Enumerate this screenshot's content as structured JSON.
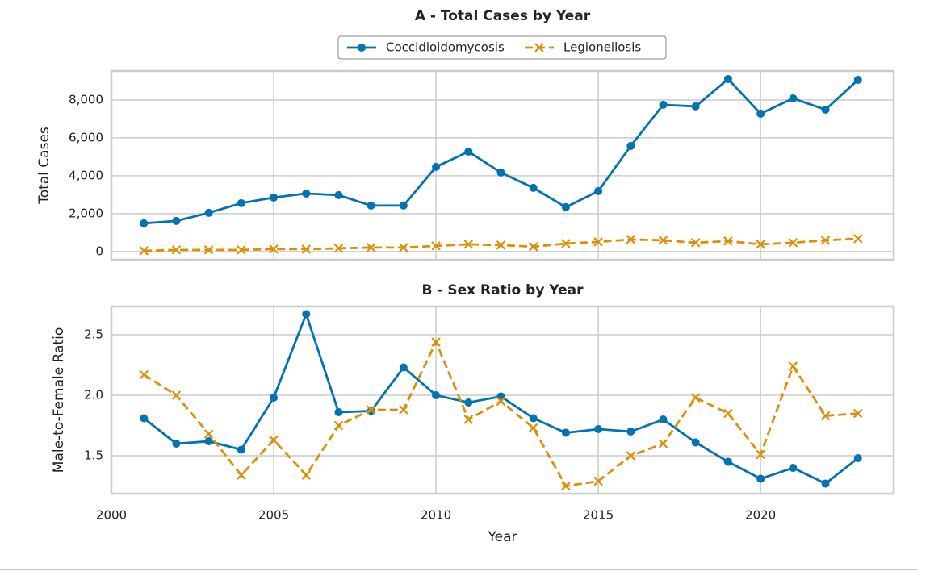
{
  "chart_data": [
    {
      "type": "line",
      "title": "A - Total Cases by Year",
      "y_label": "Total Cases",
      "x": [
        2001,
        2002,
        2003,
        2004,
        2005,
        2006,
        2007,
        2008,
        2009,
        2010,
        2011,
        2012,
        2013,
        2014,
        2015,
        2016,
        2017,
        2018,
        2019,
        2020,
        2021,
        2022,
        2023
      ],
      "series": [
        {
          "name": "Coccidioidomycosis",
          "color": "#0173b2",
          "linestyle": "solid",
          "marker": "o",
          "values": [
            1490,
            1617,
            2043,
            2553,
            2851,
            3064,
            2979,
            2426,
            2426,
            4468,
            5277,
            4170,
            3362,
            2340,
            3191,
            5574,
            7745,
            7660,
            9106,
            7277,
            8085,
            7489,
            9064
          ]
        },
        {
          "name": "Legionellosis",
          "color": "#de8f05",
          "linestyle": "dashed",
          "marker": "x",
          "values": [
            40,
            85,
            85,
            85,
            128,
            128,
            170,
            213,
            213,
            298,
            383,
            340,
            255,
            425,
            511,
            638,
            596,
            468,
            553,
            383,
            468,
            596,
            681
          ]
        }
      ],
      "xlim": [
        2000,
        2024.1
      ],
      "xticks": [
        2000,
        2005,
        2010,
        2015,
        2020
      ],
      "ylim": [
        -430,
        9530
      ],
      "yticks": [
        0,
        {
          "value": 2000,
          "label": "2,000"
        },
        {
          "value": 4000,
          "label": "4,000"
        },
        {
          "value": 6000,
          "label": "6,000"
        },
        {
          "value": 8000,
          "label": "8,000"
        }
      ],
      "grid": true
    },
    {
      "type": "line",
      "title": "B - Sex Ratio by Year",
      "y_label": "Male-to-Female Ratio",
      "x_label": "Year",
      "x": [
        2001,
        2002,
        2003,
        2004,
        2005,
        2006,
        2007,
        2008,
        2009,
        2010,
        2011,
        2012,
        2013,
        2014,
        2015,
        2016,
        2017,
        2018,
        2019,
        2020,
        2021,
        2022,
        2023
      ],
      "series": [
        {
          "color": "#0173b2",
          "linestyle": "solid",
          "marker": "o",
          "values": [
            1.81,
            1.6,
            1.62,
            1.55,
            1.98,
            2.67,
            1.86,
            1.87,
            2.23,
            2.0,
            1.94,
            1.99,
            1.81,
            1.69,
            1.72,
            1.7,
            1.8,
            1.61,
            1.45,
            1.31,
            1.4,
            1.27,
            1.48
          ]
        },
        {
          "color": "#de8f05",
          "linestyle": "dashed",
          "marker": "x",
          "values": [
            2.17,
            2.0,
            1.68,
            1.34,
            1.63,
            1.34,
            1.75,
            1.88,
            1.88,
            2.44,
            1.8,
            1.95,
            1.73,
            1.25,
            1.29,
            1.5,
            1.6,
            1.98,
            1.85,
            1.51,
            2.24,
            1.83,
            1.85
          ]
        }
      ],
      "xlim": [
        2000,
        2024.1
      ],
      "xticks": [
        2000,
        2005,
        2010,
        2015,
        2020
      ],
      "ylim": [
        1.187,
        2.733
      ],
      "yticks": [
        1.5,
        {
          "value": 2,
          "label": "2.0"
        },
        2.5
      ],
      "grid": true
    }
  ]
}
